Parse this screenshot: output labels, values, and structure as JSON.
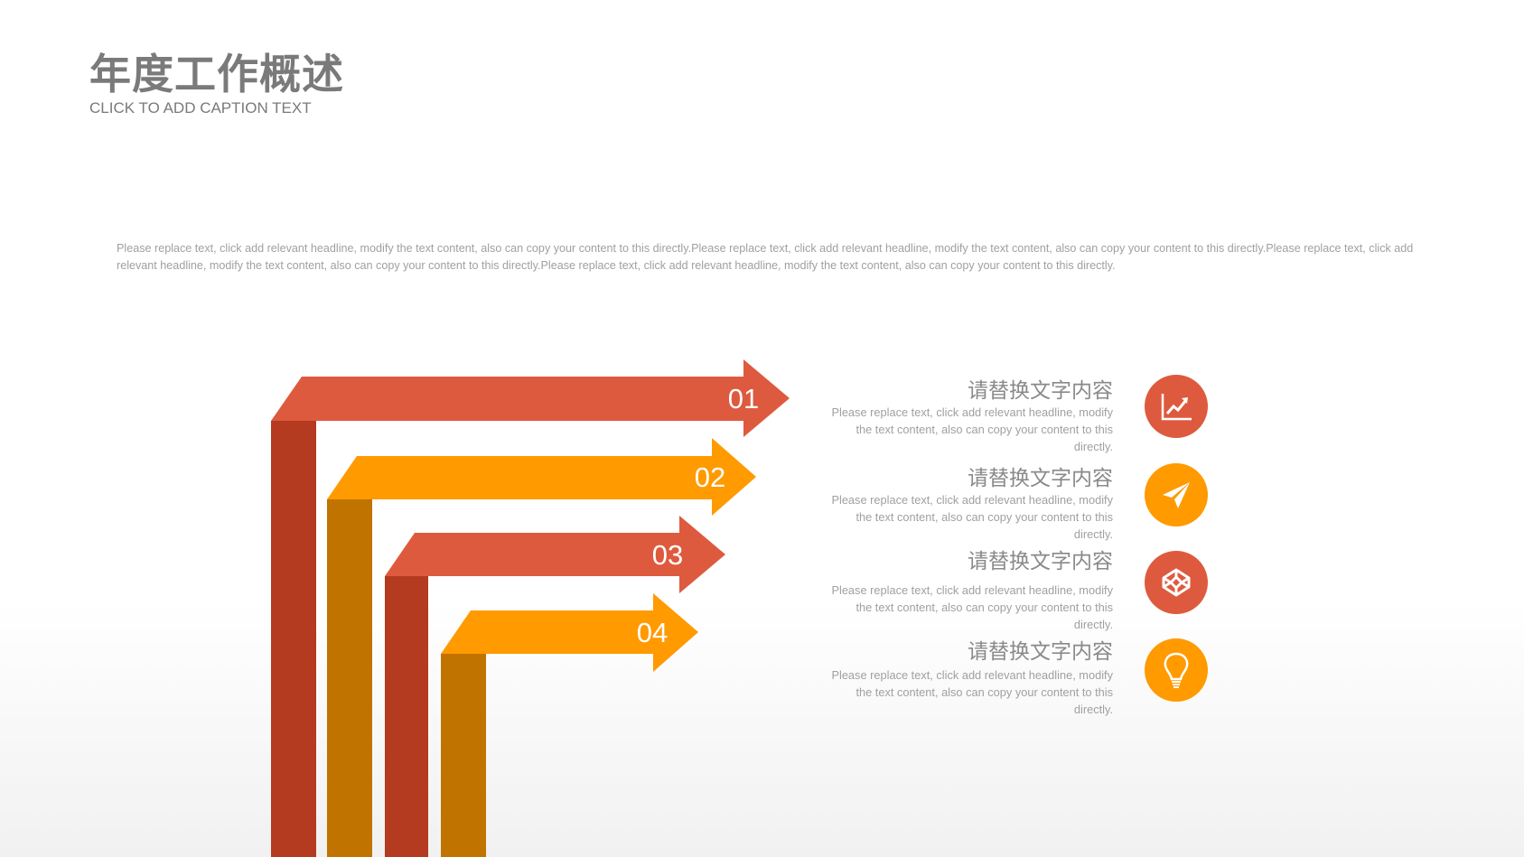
{
  "header": {
    "title": "年度工作概述",
    "caption": "CLICK TO ADD CAPTION TEXT"
  },
  "intro": "Please replace text, click add relevant headline, modify the text content, also can copy your content to this directly.Please replace text, click add relevant headline, modify the text content, also can copy your content to this directly.Please replace text, click add relevant headline, modify the text content, also can copy your content to this directly.Please replace text, click add relevant headline, modify the text content, also can copy your content to this directly.",
  "colors": {
    "red": "#DE5A3E",
    "red_dark": "#B43A20",
    "orange": "#FF9A00",
    "orange_dark": "#C17300"
  },
  "arrows": [
    {
      "label": "01",
      "color": "red"
    },
    {
      "label": "02",
      "color": "orange"
    },
    {
      "label": "03",
      "color": "red"
    },
    {
      "label": "04",
      "color": "orange"
    }
  ],
  "items": [
    {
      "heading": "请替换文字内容",
      "body": "Please replace text, click add relevant headline, modify the text content, also can copy your content to this directly.",
      "icon": "trend-chart-icon"
    },
    {
      "heading": "请替换文字内容",
      "body": "Please replace text, click add relevant headline, modify the text content, also can copy your content to this directly.",
      "icon": "paper-plane-icon"
    },
    {
      "heading": "请替换文字内容",
      "body": "Please replace text, click add relevant headline, modify the text content, also can copy your content to this directly.",
      "icon": "codepen-cube-icon"
    },
    {
      "heading": "请替换文字内容",
      "body": "Please replace text, click add relevant headline, modify the text content, also can copy your content to this directly.",
      "icon": "lightbulb-icon"
    }
  ]
}
